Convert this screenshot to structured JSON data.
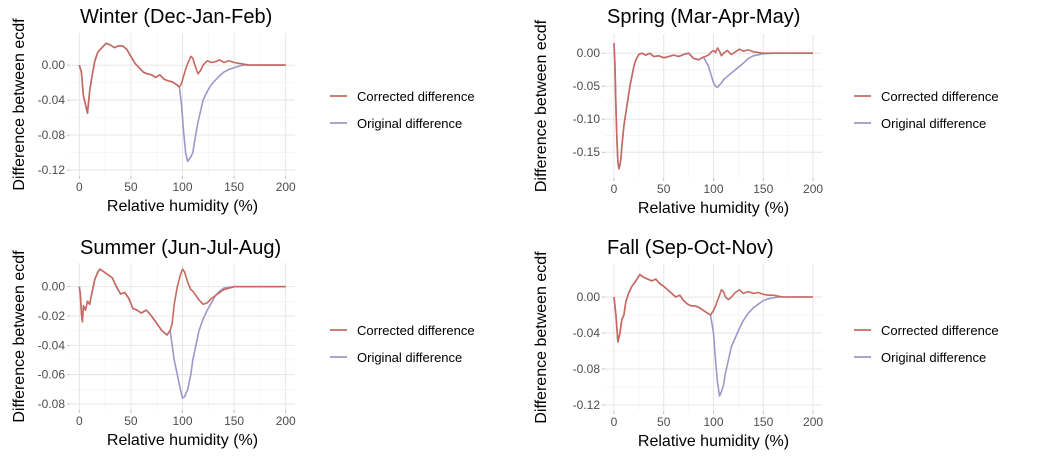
{
  "colors": {
    "corrected": "#c8695f",
    "original": "#9d98cc"
  },
  "chart_data": [
    {
      "type": "line",
      "title": "Winter (Dec-Jan-Feb)",
      "xlabel": "Relative humidity (%)",
      "ylabel": "Difference between ecdf",
      "xlim": [
        0,
        200
      ],
      "ylim": [
        -0.12,
        0.03
      ],
      "x_ticks": [
        0,
        50,
        100,
        150,
        200
      ],
      "x_tick_labels": [
        "0",
        "50",
        "100",
        "150",
        "200"
      ],
      "y_ticks": [
        0.0,
        -0.04,
        -0.08,
        -0.12
      ],
      "y_tick_labels": [
        "0.00",
        "-0.04",
        "-0.08",
        "-0.12"
      ],
      "grid": true,
      "legend_position": "right",
      "series": [
        {
          "name": "Corrected difference",
          "color": "#c8695f",
          "x": [
            0,
            2,
            4,
            6,
            8,
            10,
            12,
            15,
            18,
            22,
            26,
            30,
            34,
            38,
            42,
            46,
            50,
            54,
            58,
            62,
            66,
            70,
            74,
            78,
            82,
            86,
            90,
            94,
            97,
            99,
            101,
            103,
            105,
            108,
            110,
            112,
            115,
            118,
            120,
            124,
            128,
            132,
            136,
            140,
            145,
            150,
            155,
            160,
            165,
            170,
            180,
            190,
            200
          ],
          "y": [
            0.0,
            -0.008,
            -0.035,
            -0.045,
            -0.055,
            -0.03,
            -0.015,
            0.005,
            0.015,
            0.02,
            0.025,
            0.023,
            0.02,
            0.022,
            0.022,
            0.018,
            0.01,
            0.002,
            -0.003,
            -0.008,
            -0.01,
            -0.011,
            -0.014,
            -0.011,
            -0.016,
            -0.018,
            -0.019,
            -0.022,
            -0.025,
            -0.021,
            -0.013,
            -0.005,
            0.002,
            0.01,
            0.008,
            0.0,
            -0.01,
            -0.005,
            0.0,
            0.005,
            0.003,
            0.004,
            0.006,
            0.003,
            0.005,
            0.003,
            0.002,
            0.001,
            0.0,
            0.0,
            0.0,
            0.0,
            0.0
          ]
        },
        {
          "name": "Original difference",
          "color": "#9d98cc",
          "x": [
            0,
            2,
            4,
            6,
            8,
            10,
            12,
            15,
            18,
            22,
            26,
            30,
            34,
            38,
            42,
            46,
            50,
            54,
            58,
            62,
            66,
            70,
            74,
            78,
            82,
            86,
            90,
            94,
            97,
            99,
            101,
            103,
            105,
            108,
            110,
            112,
            115,
            118,
            120,
            124,
            128,
            132,
            136,
            140,
            145,
            150,
            155,
            160,
            165,
            170,
            180,
            190,
            200
          ],
          "y": [
            0.0,
            -0.008,
            -0.035,
            -0.045,
            -0.055,
            -0.03,
            -0.015,
            0.005,
            0.015,
            0.02,
            0.025,
            0.023,
            0.02,
            0.022,
            0.022,
            0.018,
            0.01,
            0.002,
            -0.003,
            -0.008,
            -0.01,
            -0.011,
            -0.014,
            -0.011,
            -0.016,
            -0.018,
            -0.019,
            -0.022,
            -0.025,
            -0.045,
            -0.075,
            -0.1,
            -0.11,
            -0.105,
            -0.1,
            -0.085,
            -0.065,
            -0.05,
            -0.04,
            -0.03,
            -0.022,
            -0.017,
            -0.012,
            -0.008,
            -0.005,
            -0.003,
            -0.001,
            0.0,
            0.0,
            0.0,
            0.0,
            0.0,
            0.0
          ]
        }
      ]
    },
    {
      "type": "line",
      "title": "Spring (Mar-Apr-May)",
      "xlabel": "Relative humidity (%)",
      "ylabel": "Difference between ecdf",
      "xlim": [
        0,
        200
      ],
      "ylim": [
        -0.18,
        0.02
      ],
      "x_ticks": [
        0,
        50,
        100,
        150,
        200
      ],
      "x_tick_labels": [
        "0",
        "50",
        "100",
        "150",
        "200"
      ],
      "y_ticks": [
        0.0,
        -0.05,
        -0.1,
        -0.15
      ],
      "y_tick_labels": [
        "0.00",
        "-0.05",
        "-0.10",
        "-0.15"
      ],
      "grid": true,
      "legend_position": "right",
      "series": [
        {
          "name": "Corrected difference",
          "color": "#c8695f",
          "x": [
            0,
            1,
            2,
            3,
            4,
            5,
            6,
            7,
            8,
            10,
            12,
            14,
            16,
            18,
            20,
            22,
            25,
            28,
            32,
            36,
            40,
            45,
            50,
            55,
            60,
            65,
            70,
            75,
            80,
            85,
            90,
            95,
            98,
            100,
            102,
            104,
            106,
            108,
            110,
            114,
            118,
            122,
            126,
            130,
            135,
            140,
            150,
            160,
            170,
            200
          ],
          "y": [
            0.015,
            -0.02,
            -0.08,
            -0.13,
            -0.165,
            -0.175,
            -0.17,
            -0.16,
            -0.14,
            -0.11,
            -0.09,
            -0.07,
            -0.05,
            -0.035,
            -0.02,
            -0.01,
            -0.002,
            0.0,
            -0.003,
            0.0,
            -0.005,
            -0.004,
            -0.007,
            -0.005,
            -0.003,
            -0.005,
            -0.002,
            0.0,
            -0.008,
            -0.01,
            -0.006,
            -0.003,
            0.002,
            0.004,
            0.001,
            0.008,
            0.003,
            -0.004,
            0.0,
            0.004,
            -0.002,
            0.002,
            0.006,
            0.003,
            0.005,
            0.002,
            0.0,
            0.0,
            0.0,
            0.0
          ]
        },
        {
          "name": "Original difference",
          "color": "#9d98cc",
          "x": [
            0,
            1,
            2,
            3,
            4,
            5,
            6,
            7,
            8,
            10,
            12,
            14,
            16,
            18,
            20,
            22,
            25,
            28,
            32,
            36,
            40,
            45,
            50,
            55,
            60,
            65,
            70,
            75,
            80,
            85,
            90,
            95,
            98,
            100,
            102,
            104,
            106,
            108,
            110,
            114,
            118,
            122,
            126,
            130,
            135,
            140,
            150,
            160,
            170,
            200
          ],
          "y": [
            0.015,
            -0.02,
            -0.08,
            -0.13,
            -0.165,
            -0.175,
            -0.17,
            -0.16,
            -0.14,
            -0.11,
            -0.09,
            -0.07,
            -0.05,
            -0.035,
            -0.02,
            -0.01,
            -0.002,
            0.0,
            -0.003,
            0.0,
            -0.005,
            -0.004,
            -0.007,
            -0.005,
            -0.003,
            -0.005,
            -0.002,
            0.0,
            -0.008,
            -0.01,
            -0.006,
            -0.02,
            -0.035,
            -0.045,
            -0.05,
            -0.052,
            -0.048,
            -0.045,
            -0.04,
            -0.035,
            -0.03,
            -0.025,
            -0.02,
            -0.015,
            -0.008,
            -0.004,
            -0.001,
            0.0,
            0.0,
            0.0
          ]
        }
      ]
    },
    {
      "type": "line",
      "title": "Summer (Jun-Jul-Aug)",
      "xlabel": "Relative humidity (%)",
      "ylabel": "Difference between ecdf",
      "xlim": [
        0,
        200
      ],
      "ylim": [
        -0.08,
        0.012
      ],
      "x_ticks": [
        0,
        50,
        100,
        150,
        200
      ],
      "x_tick_labels": [
        "0",
        "50",
        "100",
        "150",
        "200"
      ],
      "y_ticks": [
        0.0,
        -0.02,
        -0.04,
        -0.06,
        -0.08
      ],
      "y_tick_labels": [
        "0.00",
        "-0.02",
        "-0.04",
        "-0.06",
        "-0.08"
      ],
      "grid": true,
      "legend_position": "right",
      "series": [
        {
          "name": "Corrected difference",
          "color": "#c8695f",
          "x": [
            0,
            1,
            2,
            3,
            4,
            6,
            8,
            10,
            12,
            15,
            18,
            20,
            24,
            28,
            32,
            36,
            40,
            44,
            48,
            52,
            56,
            60,
            65,
            70,
            75,
            80,
            85,
            88,
            90,
            92,
            95,
            98,
            100,
            102,
            105,
            108,
            110,
            113,
            116,
            120,
            124,
            128,
            132,
            136,
            140,
            150,
            170,
            200
          ],
          "y": [
            0.0,
            -0.005,
            -0.018,
            -0.024,
            -0.013,
            -0.016,
            -0.01,
            -0.012,
            -0.005,
            0.005,
            0.01,
            0.012,
            0.01,
            0.008,
            0.006,
            0.0,
            -0.005,
            -0.004,
            -0.008,
            -0.015,
            -0.016,
            -0.018,
            -0.016,
            -0.02,
            -0.025,
            -0.03,
            -0.033,
            -0.03,
            -0.025,
            -0.012,
            0.0,
            0.008,
            0.012,
            0.01,
            0.003,
            -0.002,
            -0.003,
            -0.006,
            -0.009,
            -0.012,
            -0.011,
            -0.008,
            -0.006,
            -0.004,
            -0.002,
            0.0,
            0.0,
            0.0
          ]
        },
        {
          "name": "Original difference",
          "color": "#9d98cc",
          "x": [
            0,
            1,
            2,
            3,
            4,
            6,
            8,
            10,
            12,
            15,
            18,
            20,
            24,
            28,
            32,
            36,
            40,
            44,
            48,
            52,
            56,
            60,
            65,
            70,
            75,
            80,
            85,
            88,
            90,
            92,
            95,
            98,
            100,
            102,
            105,
            108,
            110,
            113,
            116,
            120,
            124,
            128,
            132,
            136,
            140,
            150,
            170,
            200
          ],
          "y": [
            0.0,
            -0.005,
            -0.018,
            -0.024,
            -0.013,
            -0.016,
            -0.01,
            -0.012,
            -0.005,
            0.005,
            0.01,
            0.012,
            0.01,
            0.008,
            0.006,
            0.0,
            -0.005,
            -0.004,
            -0.008,
            -0.015,
            -0.016,
            -0.018,
            -0.016,
            -0.02,
            -0.025,
            -0.03,
            -0.033,
            -0.03,
            -0.04,
            -0.05,
            -0.06,
            -0.07,
            -0.076,
            -0.075,
            -0.07,
            -0.06,
            -0.05,
            -0.04,
            -0.03,
            -0.022,
            -0.016,
            -0.011,
            -0.006,
            -0.003,
            -0.001,
            0.0,
            0.0,
            0.0
          ]
        }
      ]
    },
    {
      "type": "line",
      "title": "Fall (Sep-Oct-Nov)",
      "xlabel": "Relative humidity (%)",
      "ylabel": "Difference between ecdf",
      "xlim": [
        0,
        200
      ],
      "ylim": [
        -0.12,
        0.03
      ],
      "x_ticks": [
        0,
        50,
        100,
        150,
        200
      ],
      "x_tick_labels": [
        "0",
        "50",
        "100",
        "150",
        "200"
      ],
      "y_ticks": [
        0.0,
        -0.04,
        -0.08,
        -0.12
      ],
      "y_tick_labels": [
        "0.00",
        "-0.04",
        "-0.08",
        "-0.12"
      ],
      "grid": true,
      "legend_position": "right",
      "series": [
        {
          "name": "Corrected difference",
          "color": "#c8695f",
          "x": [
            0,
            2,
            4,
            6,
            8,
            10,
            12,
            15,
            18,
            22,
            26,
            30,
            34,
            38,
            42,
            46,
            50,
            54,
            58,
            62,
            66,
            70,
            74,
            78,
            82,
            86,
            90,
            94,
            97,
            100,
            102,
            104,
            106,
            108,
            110,
            112,
            115,
            118,
            122,
            126,
            130,
            135,
            140,
            145,
            150,
            155,
            160,
            165,
            170,
            180,
            200
          ],
          "y": [
            0.0,
            -0.02,
            -0.05,
            -0.04,
            -0.025,
            -0.02,
            -0.005,
            0.005,
            0.012,
            0.018,
            0.025,
            0.022,
            0.02,
            0.018,
            0.02,
            0.015,
            0.012,
            0.008,
            0.004,
            0.0,
            0.002,
            -0.004,
            -0.008,
            -0.01,
            -0.01,
            -0.012,
            -0.015,
            -0.018,
            -0.02,
            -0.015,
            -0.01,
            -0.004,
            0.002,
            0.008,
            0.006,
            0.0,
            -0.003,
            0.0,
            0.005,
            0.008,
            0.004,
            0.006,
            0.004,
            0.005,
            0.003,
            0.002,
            0.002,
            0.001,
            0.0,
            0.0,
            0.0
          ]
        },
        {
          "name": "Original difference",
          "color": "#9d98cc",
          "x": [
            0,
            2,
            4,
            6,
            8,
            10,
            12,
            15,
            18,
            22,
            26,
            30,
            34,
            38,
            42,
            46,
            50,
            54,
            58,
            62,
            66,
            70,
            74,
            78,
            82,
            86,
            90,
            94,
            97,
            100,
            102,
            104,
            106,
            108,
            110,
            112,
            115,
            118,
            122,
            126,
            130,
            135,
            140,
            145,
            150,
            155,
            160,
            165,
            170,
            180,
            200
          ],
          "y": [
            0.0,
            -0.02,
            -0.05,
            -0.04,
            -0.025,
            -0.02,
            -0.005,
            0.005,
            0.012,
            0.018,
            0.025,
            0.022,
            0.02,
            0.018,
            0.02,
            0.015,
            0.012,
            0.008,
            0.004,
            0.0,
            0.002,
            -0.004,
            -0.008,
            -0.01,
            -0.01,
            -0.012,
            -0.015,
            -0.018,
            -0.02,
            -0.04,
            -0.07,
            -0.095,
            -0.11,
            -0.105,
            -0.098,
            -0.085,
            -0.07,
            -0.055,
            -0.045,
            -0.035,
            -0.026,
            -0.018,
            -0.012,
            -0.008,
            -0.004,
            -0.002,
            -0.001,
            0.0,
            0.0,
            0.0,
            0.0
          ]
        }
      ]
    }
  ]
}
